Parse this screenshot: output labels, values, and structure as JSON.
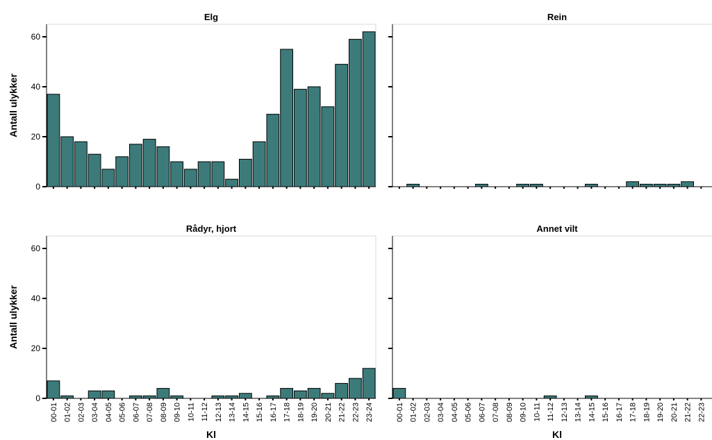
{
  "chart_data": [
    {
      "type": "bar",
      "title": "Elg",
      "y_label": "Antall ulykker",
      "categories": [
        "00-01",
        "01-02",
        "02-03",
        "03-04",
        "04-05",
        "05-06",
        "06-07",
        "07-08",
        "08-09",
        "09-10",
        "10-11",
        "11-12",
        "12-13",
        "13-14",
        "14-15",
        "15-16",
        "16-17",
        "17-18",
        "18-19",
        "19-20",
        "20-21",
        "21-22",
        "22-23",
        "23-24"
      ],
      "values": [
        37,
        20,
        18,
        13,
        7,
        12,
        17,
        19,
        16,
        10,
        7,
        10,
        10,
        3,
        11,
        18,
        29,
        55,
        39,
        40,
        32,
        49,
        59,
        62
      ],
      "color": "#3d7b7b",
      "ylim": [
        0,
        65
      ],
      "yticks": [
        0,
        20,
        40,
        60
      ]
    },
    {
      "type": "bar",
      "title": "Rein",
      "categories": [
        "00-01",
        "01-02",
        "02-03",
        "03-04",
        "04-05",
        "05-06",
        "06-07",
        "07-08",
        "08-09",
        "09-10",
        "10-11",
        "11-12",
        "12-13",
        "13-14",
        "14-15",
        "15-16",
        "16-17",
        "17-18",
        "18-19",
        "19-20",
        "20-21",
        "21-22",
        "22-23",
        "23-24"
      ],
      "values": [
        0,
        1,
        0,
        0,
        0,
        0,
        1,
        0,
        0,
        1,
        1,
        0,
        0,
        0,
        1,
        0,
        0,
        2,
        1,
        1,
        1,
        2,
        0,
        0
      ],
      "color": "#3d7b7b",
      "ylim": [
        0,
        65
      ],
      "yticks": [
        0,
        20,
        40,
        60
      ]
    },
    {
      "type": "bar",
      "title": "Rådyr, hjort",
      "y_label": "Antall ulykker",
      "x_label": "Kl",
      "categories": [
        "00-01",
        "01-02",
        "02-03",
        "03-04",
        "04-05",
        "05-06",
        "06-07",
        "07-08",
        "08-09",
        "09-10",
        "10-11",
        "11-12",
        "12-13",
        "13-14",
        "14-15",
        "15-16",
        "16-17",
        "17-18",
        "18-19",
        "19-20",
        "20-21",
        "21-22",
        "22-23",
        "23-24"
      ],
      "values": [
        7,
        1,
        0,
        3,
        3,
        0,
        1,
        1,
        4,
        1,
        0,
        0,
        1,
        1,
        2,
        0,
        1,
        4,
        3,
        4,
        2,
        6,
        8,
        12
      ],
      "color": "#3d7b7b",
      "ylim": [
        0,
        65
      ],
      "yticks": [
        0,
        20,
        40,
        60
      ]
    },
    {
      "type": "bar",
      "title": "Annet vilt",
      "x_label": "Kl",
      "categories": [
        "00-01",
        "01-02",
        "02-03",
        "03-04",
        "04-05",
        "05-06",
        "06-07",
        "07-08",
        "08-09",
        "09-10",
        "10-11",
        "11-12",
        "12-13",
        "13-14",
        "14-15",
        "15-16",
        "16-17",
        "17-18",
        "18-19",
        "19-20",
        "20-21",
        "21-22",
        "22-23",
        "23-24"
      ],
      "values": [
        4,
        0,
        0,
        0,
        0,
        0,
        0,
        0,
        0,
        0,
        0,
        1,
        0,
        0,
        1,
        0,
        0,
        0,
        0,
        0,
        0,
        0,
        0,
        0
      ],
      "color": "#3d7b7b",
      "ylim": [
        0,
        65
      ],
      "yticks": [
        0,
        20,
        40,
        60
      ]
    }
  ]
}
